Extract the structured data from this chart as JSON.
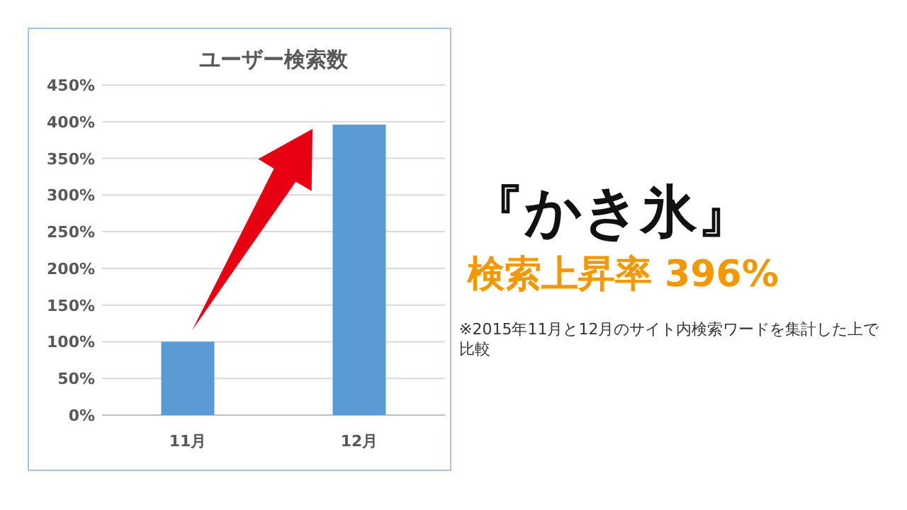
{
  "chart_data": {
    "type": "bar",
    "title": "ユーザー検索数",
    "categories": [
      "11月",
      "12月"
    ],
    "values": [
      100,
      396
    ],
    "color": "#5b9bd5",
    "ylim": [
      0,
      450
    ],
    "yticks": [
      {
        "value": 0,
        "label": "0%"
      },
      {
        "value": 50,
        "label": "50%"
      },
      {
        "value": 100,
        "label": "100%"
      },
      {
        "value": 150,
        "label": "150%"
      },
      {
        "value": 200,
        "label": "200%"
      },
      {
        "value": 250,
        "label": "250%"
      },
      {
        "value": 300,
        "label": "300%"
      },
      {
        "value": 350,
        "label": "350%"
      },
      {
        "value": 400,
        "label": "400%"
      },
      {
        "value": 450,
        "label": "450%"
      }
    ],
    "grid": "y",
    "annotations": [
      "『かき氷』",
      "検索上昇率 396%",
      "※2015年11月と12月のサイト内検索ワードを集計した上で比較"
    ]
  }
}
